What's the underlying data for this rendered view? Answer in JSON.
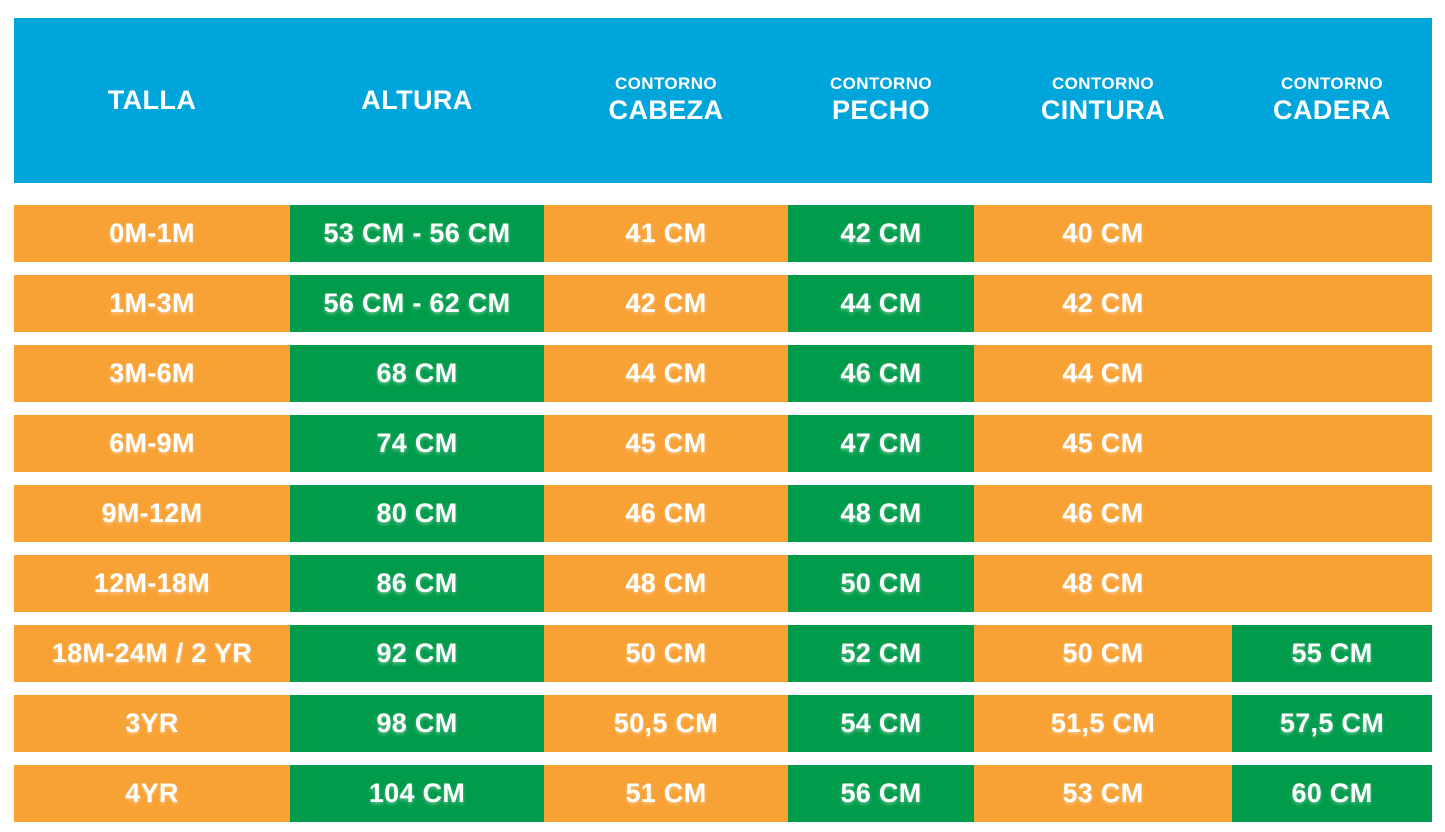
{
  "colors": {
    "header_blue": "#00A5DC",
    "orange": "#F8A134",
    "green": "#009C4B",
    "text_white": "#FFFFFF"
  },
  "chart_data": {
    "type": "table",
    "columns": [
      {
        "key": "talla",
        "top": "",
        "main": "TALLA"
      },
      {
        "key": "altura",
        "top": "",
        "main": "ALTURA"
      },
      {
        "key": "contorno-cabeza",
        "top": "CONTORNO",
        "main": "CABEZA"
      },
      {
        "key": "contorno-pecho",
        "top": "CONTORNO",
        "main": "PECHO"
      },
      {
        "key": "contorno-cintura",
        "top": "CONTORNO",
        "main": "CINTURA"
      },
      {
        "key": "contorno-cadera",
        "top": "CONTORNO",
        "main": "CADERA"
      }
    ],
    "rows": [
      {
        "cells": [
          {
            "text": "0M-1M",
            "bg": "orange"
          },
          {
            "text": "53 CM - 56 CM",
            "bg": "green"
          },
          {
            "text": "41 CM",
            "bg": "orange"
          },
          {
            "text": "42 CM",
            "bg": "green"
          },
          {
            "text": "40 CM",
            "bg": "orange"
          },
          {
            "text": "",
            "bg": "orange"
          }
        ]
      },
      {
        "cells": [
          {
            "text": "1M-3M",
            "bg": "orange"
          },
          {
            "text": "56 CM - 62 CM",
            "bg": "green"
          },
          {
            "text": "42 CM",
            "bg": "orange"
          },
          {
            "text": "44 CM",
            "bg": "green"
          },
          {
            "text": "42 CM",
            "bg": "orange"
          },
          {
            "text": "",
            "bg": "orange"
          }
        ]
      },
      {
        "cells": [
          {
            "text": "3M-6M",
            "bg": "orange"
          },
          {
            "text": "68 CM",
            "bg": "green"
          },
          {
            "text": "44 CM",
            "bg": "orange"
          },
          {
            "text": "46 CM",
            "bg": "green"
          },
          {
            "text": "44 CM",
            "bg": "orange"
          },
          {
            "text": "",
            "bg": "orange"
          }
        ]
      },
      {
        "cells": [
          {
            "text": "6M-9M",
            "bg": "orange"
          },
          {
            "text": "74 CM",
            "bg": "green"
          },
          {
            "text": "45 CM",
            "bg": "orange"
          },
          {
            "text": "47 CM",
            "bg": "green"
          },
          {
            "text": "45 CM",
            "bg": "orange"
          },
          {
            "text": "",
            "bg": "orange"
          }
        ]
      },
      {
        "cells": [
          {
            "text": "9M-12M",
            "bg": "orange"
          },
          {
            "text": "80 CM",
            "bg": "green"
          },
          {
            "text": "46 CM",
            "bg": "orange"
          },
          {
            "text": "48 CM",
            "bg": "green"
          },
          {
            "text": "46 CM",
            "bg": "orange"
          },
          {
            "text": "",
            "bg": "orange"
          }
        ]
      },
      {
        "cells": [
          {
            "text": "12M-18M",
            "bg": "orange"
          },
          {
            "text": "86 CM",
            "bg": "green"
          },
          {
            "text": "48 CM",
            "bg": "orange"
          },
          {
            "text": "50 CM",
            "bg": "green"
          },
          {
            "text": "48 CM",
            "bg": "orange"
          },
          {
            "text": "",
            "bg": "orange"
          }
        ]
      },
      {
        "cells": [
          {
            "text": "18M-24M / 2 YR",
            "bg": "orange"
          },
          {
            "text": "92 CM",
            "bg": "green"
          },
          {
            "text": "50 CM",
            "bg": "orange"
          },
          {
            "text": "52 CM",
            "bg": "green"
          },
          {
            "text": "50 CM",
            "bg": "orange"
          },
          {
            "text": "55 CM",
            "bg": "green"
          }
        ]
      },
      {
        "cells": [
          {
            "text": "3YR",
            "bg": "orange"
          },
          {
            "text": "98 CM",
            "bg": "green"
          },
          {
            "text": "50,5 CM",
            "bg": "orange"
          },
          {
            "text": "54 CM",
            "bg": "green"
          },
          {
            "text": "51,5 CM",
            "bg": "orange"
          },
          {
            "text": "57,5 CM",
            "bg": "green"
          }
        ]
      },
      {
        "cells": [
          {
            "text": "4YR",
            "bg": "orange"
          },
          {
            "text": "104 CM",
            "bg": "green"
          },
          {
            "text": "51 CM",
            "bg": "orange"
          },
          {
            "text": "56 CM",
            "bg": "green"
          },
          {
            "text": "53 CM",
            "bg": "orange"
          },
          {
            "text": "60 CM",
            "bg": "green"
          }
        ]
      }
    ]
  }
}
